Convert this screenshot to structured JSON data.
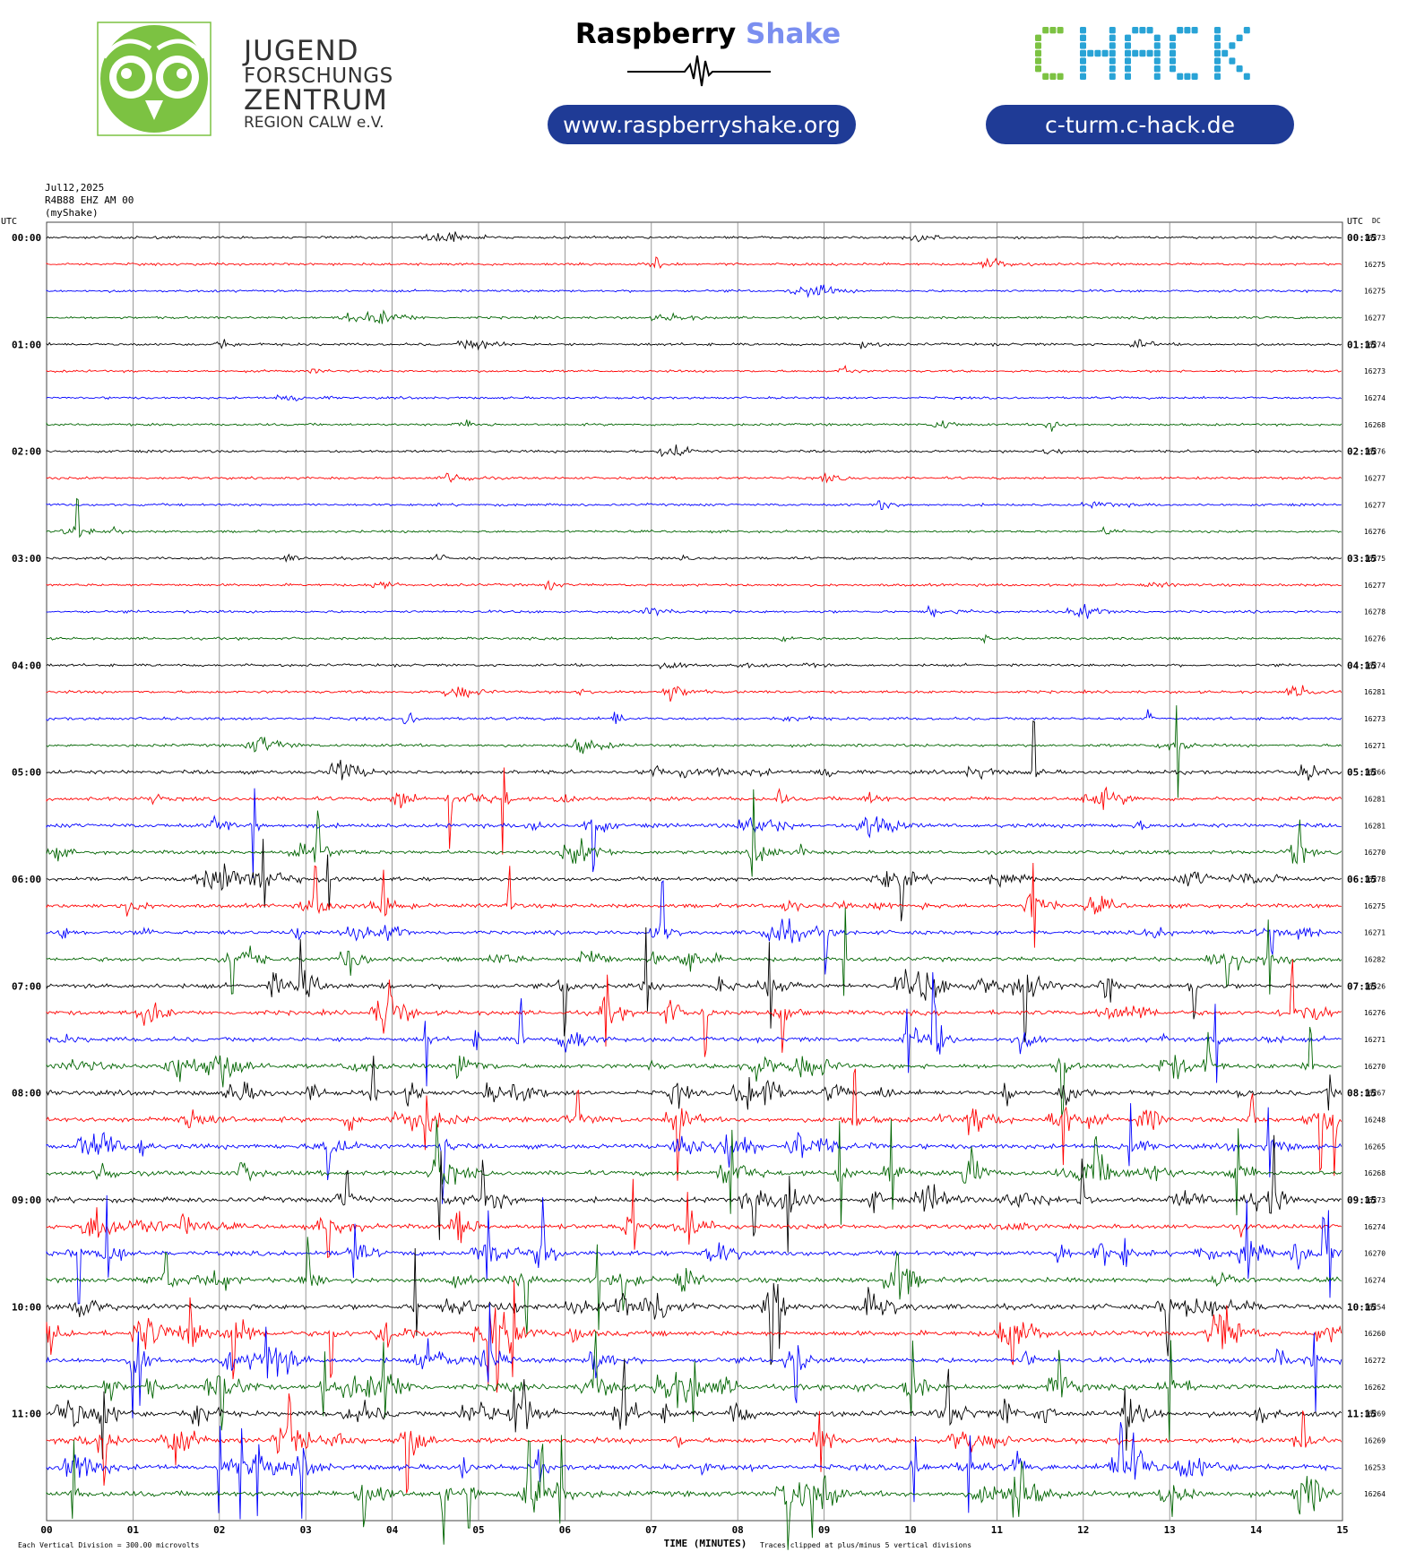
{
  "header": {
    "jfz": {
      "line1": "JUGEND",
      "line2": "FORSCHUNGS",
      "line3": "ZENTRUM",
      "line4": "REGION CALW e.V."
    },
    "raspberry_shake": {
      "word1": "Raspberry",
      "word2": "Shake",
      "url": "www.raspberryshake.org"
    },
    "chack": {
      "logo": "CHACK",
      "url": "c-turm.c-hack.de"
    }
  },
  "meta": {
    "date": "Jul12,2025",
    "station": "R4B88 EHZ AM 00",
    "source": "(myShake)"
  },
  "colors": {
    "trace": [
      "#000000",
      "#ff0000",
      "#0000ff",
      "#006400"
    ],
    "grid": "#808080",
    "navy": "#1f3b96",
    "owl": "#7cc242",
    "chack_green": "#7cc242",
    "chack_blue": "#29a3d6"
  },
  "chart_data": {
    "type": "line",
    "title": "",
    "utc_left_label": "UTC",
    "utc_right_label": "UTC",
    "dc_label": "DC",
    "xlabel": "TIME (MINUTES)",
    "xlim": [
      0,
      15
    ],
    "x_ticks": [
      "00",
      "01",
      "02",
      "03",
      "04",
      "05",
      "06",
      "07",
      "08",
      "09",
      "10",
      "11",
      "12",
      "13",
      "14",
      "15"
    ],
    "footer_left": "Each Vertical Division = 300.00 microvolts",
    "footer_right": "Traces clipped at plus/minus 5 vertical divisions",
    "left_hour_labels": [
      "00:00",
      "01:00",
      "02:00",
      "03:00",
      "04:00",
      "05:00",
      "06:00",
      "07:00",
      "08:00",
      "09:00",
      "10:00",
      "11:00"
    ],
    "right_hour_labels": [
      "00:15",
      "01:15",
      "02:15",
      "03:15",
      "04:15",
      "05:15",
      "06:15",
      "07:15",
      "08:15",
      "09:15",
      "10:15",
      "11:15"
    ],
    "dc_values": [
      "16273",
      "16275",
      "16275",
      "16277",
      "16274",
      "16273",
      "16274",
      "16268",
      "16276",
      "16277",
      "16277",
      "16276",
      "16275",
      "16277",
      "16278",
      "16276",
      "16274",
      "16281",
      "16273",
      "16271",
      "16266",
      "16281",
      "16281",
      "16270",
      "16278",
      "16275",
      "16271",
      "16282",
      "16326",
      "16276",
      "16271",
      "16270",
      "16267",
      "16248",
      "16265",
      "16268",
      "16273",
      "16274",
      "16270",
      "16274",
      "16254",
      "16260",
      "16272",
      "16262",
      "16269",
      "16269",
      "16253",
      "16264"
    ],
    "activity": [
      0.15,
      0.15,
      0.12,
      0.12,
      0.2,
      0.1,
      0.1,
      0.12,
      0.15,
      0.15,
      0.15,
      0.12,
      0.2,
      0.2,
      0.2,
      0.15,
      0.2,
      0.25,
      0.3,
      0.3,
      0.6,
      0.7,
      0.7,
      0.6,
      0.7,
      0.7,
      0.7,
      0.75,
      0.9,
      0.9,
      0.9,
      0.9,
      1.0,
      1.0,
      1.0,
      1.0,
      1.0,
      1.0,
      1.0,
      1.0,
      1.1,
      1.1,
      1.1,
      1.1,
      1.15,
      1.15,
      1.15,
      1.2
    ]
  }
}
